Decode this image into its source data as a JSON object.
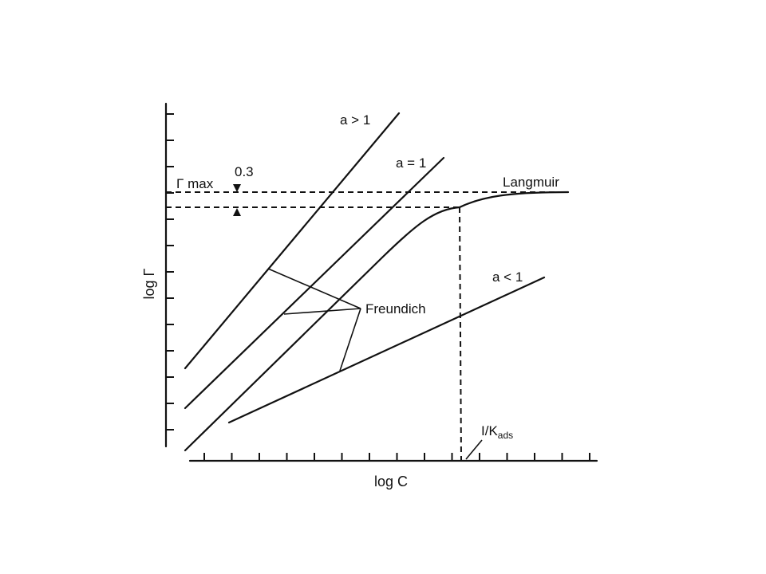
{
  "diagram": {
    "axes": {
      "x_label": "log C",
      "y_label": "log Γ"
    },
    "labels": {
      "a_gt_1": "a > 1",
      "a_eq_1": "a = 1",
      "a_lt_1": "a < 1",
      "gamma_max": "Γ max",
      "gap": "0.3",
      "langmuir": "Langmuir",
      "freundlich": "Freundich",
      "k_prefix": "I/K",
      "k_subscript": "ads"
    }
  }
}
